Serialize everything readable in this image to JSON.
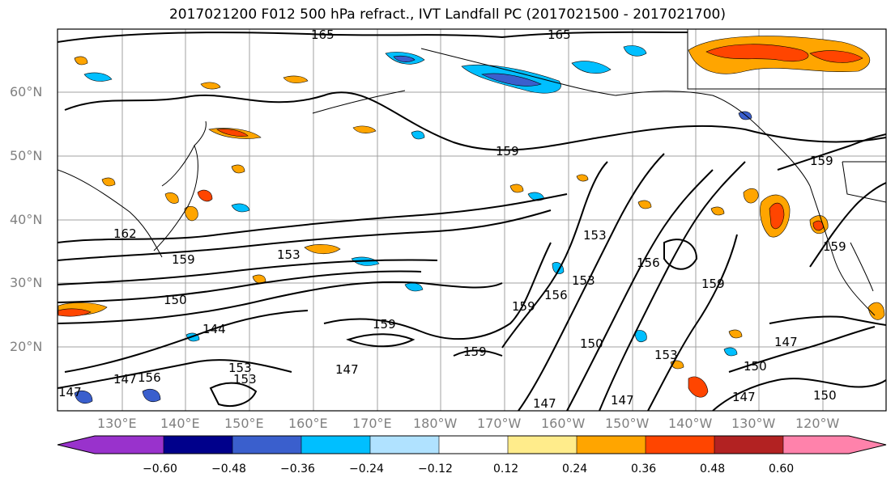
{
  "title": "2017021200 F012 500 hPa refract., IVT Landfall PC (2017021500 - 2017021700)",
  "lat_labels": [
    "60°N",
    "50°N",
    "40°N",
    "30°N",
    "20°N"
  ],
  "lon_labels": [
    "130°E",
    "140°E",
    "150°E",
    "160°E",
    "170°E",
    "180°W",
    "170°W",
    "160°W",
    "150°W",
    "140°W",
    "130°W",
    "120°W"
  ],
  "contour_labels": [
    "165",
    "165",
    "159",
    "159",
    "162",
    "159",
    "153",
    "150",
    "144",
    "153",
    "153",
    "147",
    "156",
    "159",
    "159",
    "153",
    "156",
    "159",
    "153",
    "156",
    "159",
    "159",
    "150",
    "153",
    "150",
    "147",
    "147",
    "147",
    "147",
    "150",
    "147",
    "147"
  ],
  "colorbar": {
    "ticks": [
      "−0.60",
      "−0.48",
      "−0.36",
      "−0.24",
      "−0.12",
      "0.12",
      "0.24",
      "0.36",
      "0.48",
      "0.60"
    ],
    "colors": [
      "#9932cc",
      "#00008b",
      "#3a5fcd",
      "#00bfff",
      "#b0e2ff",
      "#ffffff",
      "#ffec8b",
      "#ffa500",
      "#ff4500",
      "#b22222",
      "#ff82ab"
    ]
  }
}
